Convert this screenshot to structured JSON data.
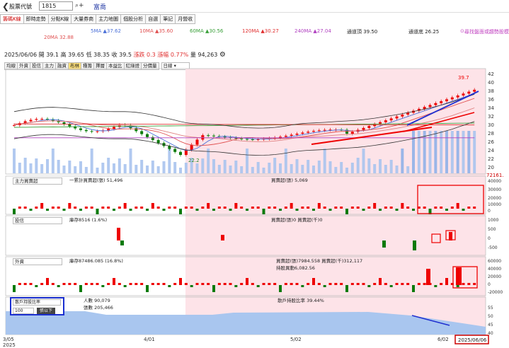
{
  "topbar": {
    "back_icon": "chevron-left-icon",
    "code_label": "股票代號",
    "code_value": "1815",
    "search_icon": "search-plus-icon",
    "stock_name": "富喬"
  },
  "tabs": [
    "籌碼K線",
    "即時走勢",
    "分點K線",
    "大量券商",
    "主力地圖",
    "個股分析",
    "自選",
    "筆記",
    "月營收"
  ],
  "ma_legend": {
    "row1": [
      "5MA ▲37.62",
      "10MA ▲35.60",
      "60MA ▲30.56",
      "120MA ▲30.27",
      "240MA ▲27.04",
      "通道頂 39.50",
      "通道底 26.25"
    ],
    "row2": "20MA 32.88",
    "link": "尋找盤面或趨勢股模型",
    "colors": {
      "ma5": "#4a6fd8",
      "ma10": "#e05050",
      "ma20": "#e05050",
      "ma60": "#3aa03a",
      "ma120": "#e03030",
      "ma240": "#b040c0",
      "band": "#333333"
    }
  },
  "info": {
    "date": "2025/06/06",
    "open_label": "開",
    "open": "39.1",
    "high_label": "高",
    "high": "39.65",
    "low_label": "低",
    "low": "38.35",
    "close_label": "收",
    "close": "39.5",
    "chg_label": "漲跌",
    "chg": "0.3",
    "pct_label": "漲幅",
    "pct": "0.77%",
    "vol_label": "量",
    "vol": "94,263",
    "settings_icon": "gear-icon"
  },
  "chart_tabs": [
    "均線",
    "外資",
    "投信",
    "主力",
    "融資",
    "布林",
    "種籌",
    "擇層",
    "本益比",
    "紅綠燈",
    "分價量"
  ],
  "chart_tab_active": 5,
  "period": "日線",
  "price_axis": [
    "42",
    "40",
    "38",
    "36",
    "34",
    "32",
    "30",
    "28",
    "26",
    "24",
    "22",
    "20"
  ],
  "price_annotations": {
    "high": "39.7",
    "low": "22.2"
  },
  "panel1": {
    "select": "主力買賣超",
    "label1": "一累計買賣超(張) 51,496",
    "label2": "買賣超(張) 5,069",
    "axis": [
      "40000",
      "30000",
      "20000",
      "10000",
      "0"
    ],
    "top": "72161."
  },
  "panel2": {
    "select": "投信",
    "label1": "庫存8516 (1.6%)",
    "label2": "買賣超(張)0 買賣超(千)0",
    "axis": [
      "1000",
      "500",
      "0",
      "-500"
    ]
  },
  "panel3": {
    "select": "外資",
    "label1": "庫存87486.085 (16.8%)",
    "label2": "買賣超(張)7984.558 買賣超(千)312,117",
    "label3": "持股異動6,082.56",
    "axis": [
      "60000",
      "40000",
      "20000",
      "0",
      "-20000"
    ]
  },
  "panel4": {
    "select": "散戶持股比率",
    "num": "100",
    "btn": "張以下",
    "label1": "人數 90,079",
    "label2": "張數 205,466",
    "label3": "散戶持股比率 39.44%",
    "axis": [
      "55",
      "50",
      "45",
      "40"
    ]
  },
  "xaxis": [
    "3/05",
    "2025",
    "4/01",
    "5/02",
    "6/02",
    "2025/06/06"
  ]
}
